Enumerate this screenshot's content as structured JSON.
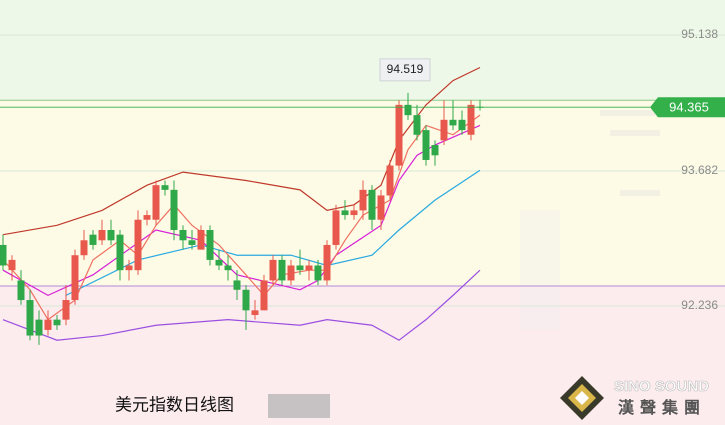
{
  "chart_data": {
    "type": "candlestick",
    "ylim": [
      90.962,
      95.513
    ],
    "yticks": [
      95.138,
      93.682,
      92.236
    ],
    "grid": true,
    "up_color": "#e8584c",
    "down_color": "#2fa84a",
    "candles": [
      [
        92.89,
        93.0,
        92.62,
        92.67
      ],
      [
        92.62,
        92.78,
        92.51,
        92.73
      ],
      [
        92.51,
        92.62,
        92.25,
        92.3
      ],
      [
        92.3,
        92.41,
        91.87,
        91.92
      ],
      [
        92.09,
        92.19,
        91.82,
        91.92
      ],
      [
        91.98,
        92.19,
        91.92,
        92.09
      ],
      [
        92.09,
        92.14,
        91.98,
        92.03
      ],
      [
        92.09,
        92.46,
        92.03,
        92.3
      ],
      [
        92.3,
        92.84,
        92.25,
        92.78
      ],
      [
        92.78,
        93.05,
        92.73,
        92.94
      ],
      [
        93.0,
        93.05,
        92.84,
        92.89
      ],
      [
        92.94,
        93.16,
        92.89,
        93.05
      ],
      [
        93.05,
        93.16,
        92.89,
        92.94
      ],
      [
        93.0,
        93.05,
        92.51,
        92.62
      ],
      [
        92.62,
        92.73,
        92.51,
        92.67
      ],
      [
        92.62,
        93.26,
        92.57,
        93.16
      ],
      [
        93.16,
        93.26,
        93.1,
        93.21
      ],
      [
        93.16,
        93.58,
        93.1,
        93.53
      ],
      [
        93.53,
        93.58,
        93.42,
        93.48
      ],
      [
        93.48,
        93.58,
        92.94,
        93.05
      ],
      [
        93.05,
        93.1,
        92.84,
        92.94
      ],
      [
        92.94,
        93.05,
        92.84,
        92.89
      ],
      [
        92.84,
        93.1,
        92.84,
        93.05
      ],
      [
        93.05,
        93.1,
        92.67,
        92.73
      ],
      [
        92.73,
        92.84,
        92.62,
        92.67
      ],
      [
        92.67,
        92.78,
        92.51,
        92.62
      ],
      [
        92.51,
        92.62,
        92.3,
        92.41
      ],
      [
        92.41,
        92.46,
        91.98,
        92.19
      ],
      [
        92.14,
        92.3,
        92.09,
        92.19
      ],
      [
        92.19,
        92.57,
        92.19,
        92.51
      ],
      [
        92.51,
        92.78,
        92.46,
        92.73
      ],
      [
        92.73,
        92.78,
        92.46,
        92.51
      ],
      [
        92.51,
        92.73,
        92.46,
        92.67
      ],
      [
        92.67,
        92.84,
        92.57,
        92.62
      ],
      [
        92.62,
        92.73,
        92.51,
        92.67
      ],
      [
        92.67,
        92.73,
        92.46,
        92.51
      ],
      [
        92.51,
        92.94,
        92.46,
        92.89
      ],
      [
        92.89,
        93.32,
        92.84,
        93.26
      ],
      [
        93.26,
        93.37,
        93.16,
        93.21
      ],
      [
        93.21,
        93.32,
        93.16,
        93.26
      ],
      [
        93.26,
        93.58,
        93.16,
        93.48
      ],
      [
        93.48,
        93.53,
        93.05,
        93.16
      ],
      [
        93.16,
        93.48,
        93.05,
        93.42
      ],
      [
        93.42,
        93.8,
        93.37,
        93.74
      ],
      [
        93.74,
        94.44,
        93.69,
        94.39
      ],
      [
        94.39,
        94.519,
        94.23,
        94.28
      ],
      [
        94.28,
        94.39,
        94.01,
        94.07
      ],
      [
        94.12,
        94.17,
        93.74,
        93.8
      ],
      [
        93.96,
        94.01,
        93.74,
        93.85
      ],
      [
        94.01,
        94.44,
        93.96,
        94.23
      ],
      [
        94.23,
        94.44,
        94.12,
        94.17
      ],
      [
        94.23,
        94.33,
        94.07,
        94.12
      ],
      [
        94.07,
        94.44,
        94.01,
        94.39
      ],
      [
        94.37,
        94.44,
        94.33,
        94.365
      ]
    ],
    "overlays": [
      {
        "color": "#c0392b",
        "x": [
          0,
          6,
          11,
          16,
          20,
          27,
          33,
          36,
          39,
          42,
          44,
          47,
          50,
          53
        ],
        "values": [
          93.0,
          93.1,
          93.26,
          93.53,
          93.67,
          93.58,
          93.48,
          93.26,
          93.32,
          93.53,
          94.01,
          94.39,
          94.65,
          94.79
        ]
      },
      {
        "color": "#9b4fe0",
        "x": [
          0,
          6,
          11,
          17,
          25,
          33,
          36,
          41,
          44,
          47,
          50,
          53
        ],
        "values": [
          92.09,
          91.87,
          91.92,
          92.03,
          92.09,
          92.03,
          92.09,
          92.03,
          91.87,
          92.09,
          92.35,
          92.62
        ]
      },
      {
        "color": "#29a9e0",
        "x": [
          7,
          15,
          22,
          26,
          32,
          36,
          41,
          44,
          48,
          53
        ],
        "values": [
          92.35,
          92.73,
          92.89,
          92.78,
          92.78,
          92.67,
          92.78,
          93.05,
          93.37,
          93.69
        ]
      },
      {
        "color": "#d61fd6",
        "x": [
          0,
          5,
          10,
          17,
          22,
          26,
          33,
          35,
          37,
          42,
          44,
          46,
          48,
          53
        ],
        "values": [
          92.62,
          92.35,
          92.57,
          93.05,
          92.94,
          92.57,
          92.41,
          92.51,
          92.78,
          93.1,
          93.58,
          93.85,
          93.96,
          94.17
        ]
      },
      {
        "color": "#f07060",
        "x": [
          0,
          3,
          5,
          8,
          10,
          13,
          15,
          17,
          19,
          21,
          24,
          27,
          29,
          31,
          34,
          36,
          38,
          40,
          43,
          45,
          47,
          50,
          53
        ],
        "values": [
          92.73,
          92.41,
          92.09,
          92.3,
          92.73,
          92.94,
          92.78,
          93.1,
          93.32,
          93.1,
          92.89,
          92.57,
          92.35,
          92.57,
          92.62,
          92.62,
          92.94,
          93.21,
          93.37,
          93.91,
          94.17,
          94.07,
          94.28
        ]
      }
    ],
    "levels": [
      {
        "value": 94.44,
        "color": "#8cc98c"
      },
      {
        "value": 92.45,
        "color": "#b48ad6"
      }
    ],
    "zone_colors": [
      "#eef8e8",
      "#fdfbe6",
      "#fcecee"
    ],
    "last_price": 94.365,
    "last_price_color": "#33b04a",
    "max_marker": 94.519,
    "title": "美元指数日线图",
    "logo_text": "SINO SOUND",
    "logo_subtext": "漢聲集團"
  }
}
